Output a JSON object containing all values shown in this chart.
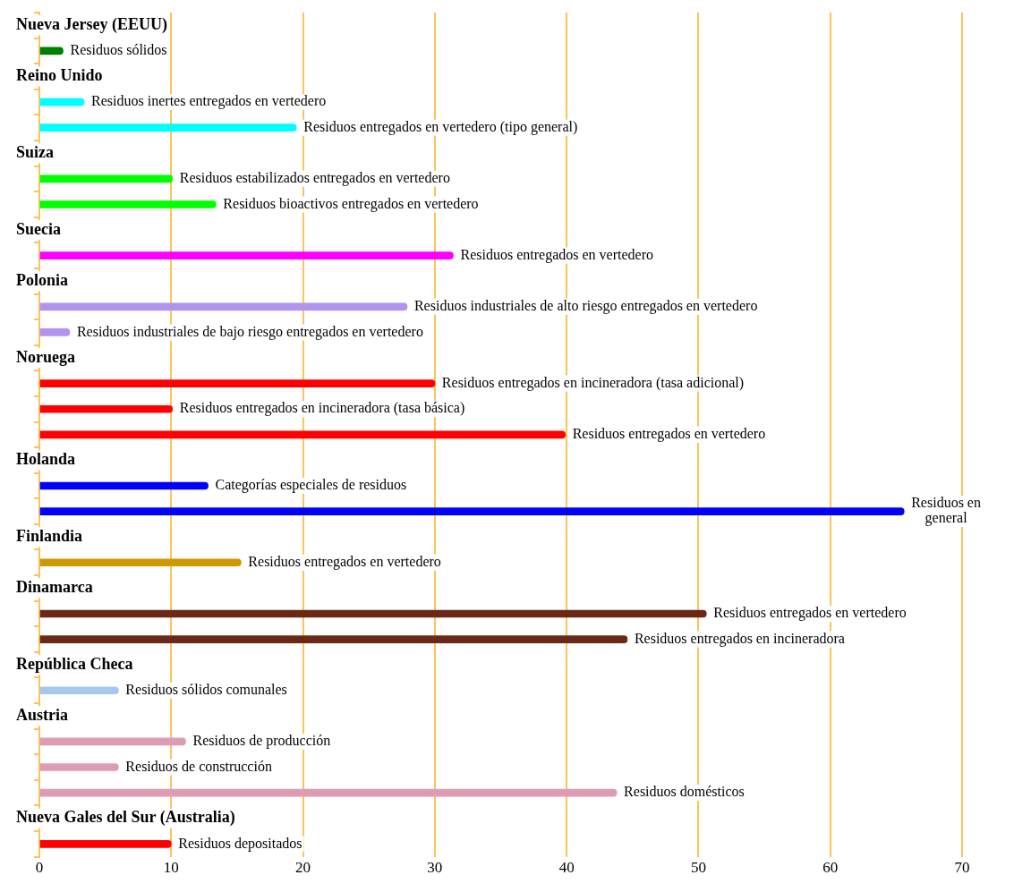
{
  "chart_data": {
    "type": "bar",
    "orientation": "horizontal",
    "categories": [
      "Nueva Jersey (EEUU)",
      "Residuos sólidos",
      "Reino Unido",
      "Residuos inertes entregados en vertedero",
      "Residuos entregados en vertedero (tipo general)",
      "Suiza",
      "Residuos estabilizados entregados en vertedero",
      "Residuos bioactivos entregados en vertedero",
      "Suecia",
      "Residuos entregados en vertedero",
      "Polonia",
      "Residuos industriales de alto riesgo entregados en vertedero",
      "Residuos industriales de bajo riesgo entregados en vertedero",
      "Noruega",
      "Residuos entregados en incineradora (tasa adicional)",
      "Residuos entregados en incineradora (tasa básica)",
      "Residuos entregados en vertedero",
      "Holanda",
      "Categorías especiales de residuos",
      "Residuos en general",
      "Finlandia",
      "Residuos entregados en vertedero",
      "Dinamarca",
      "Residuos entregados en vertedero",
      "Residuos entregados en incineradora",
      "República Checa",
      "Residuos sólidos comunales",
      "Austria",
      "Residuos de producción",
      "Residuos de construcción",
      "Residuos domésticos",
      "Nueva Gales del Sur (Australia)",
      "Residuos depositados"
    ],
    "values": [
      null,
      1.8,
      null,
      3.4,
      19.5,
      null,
      10.1,
      13.4,
      null,
      31.4,
      null,
      27.9,
      2.3,
      null,
      30.0,
      10.1,
      39.9,
      null,
      12.8,
      65.6,
      null,
      15.3,
      null,
      50.6,
      44.6,
      null,
      6.0,
      null,
      11.1,
      6.0,
      43.8,
      null,
      10.0
    ],
    "colors": [
      null,
      "#008000",
      null,
      "#00ffff",
      "#00ffff",
      null,
      "#00ff00",
      "#00ff00",
      null,
      "#ff00ff",
      null,
      "#b294ee",
      "#b294ee",
      null,
      "#ff0000",
      "#ff0000",
      "#ff0000",
      null,
      "#0000ff",
      "#0000ff",
      null,
      "#cc9900",
      null,
      "#6b2814",
      "#6b2814",
      null,
      "#a6c8ee",
      null,
      "#dd9cb4",
      "#dd9cb4",
      "#dd9cb4",
      null,
      "#ff0000"
    ],
    "xlim": [
      0,
      70
    ],
    "xticks": [
      0,
      10,
      20,
      30,
      40,
      50,
      60,
      70
    ],
    "grid": "x",
    "legend": false
  }
}
